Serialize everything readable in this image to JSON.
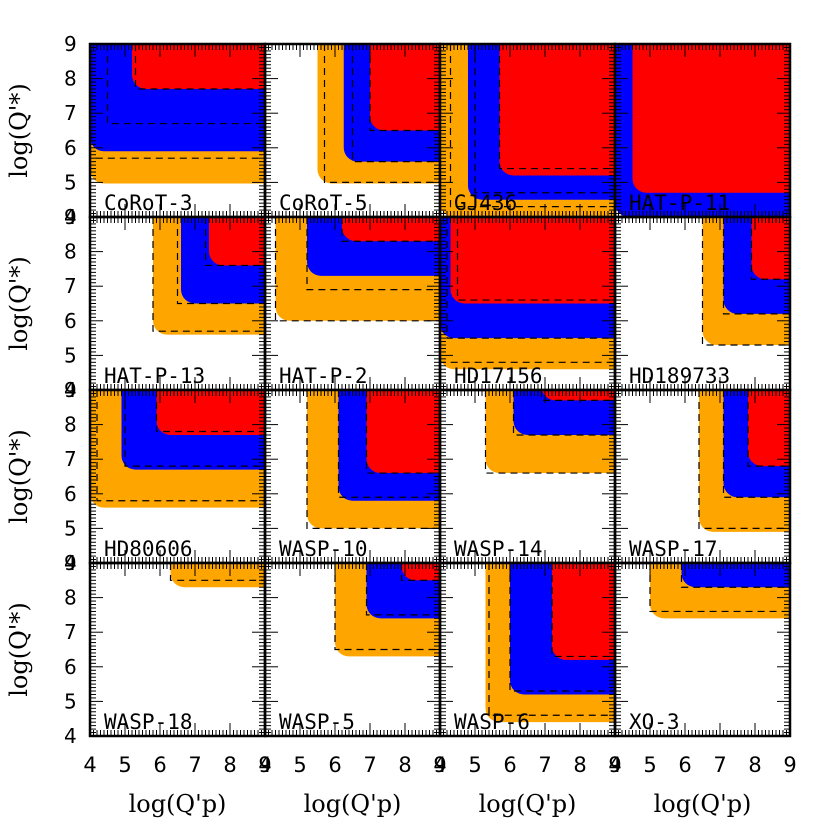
{
  "chart_data": {
    "type": "area",
    "layout": "4x4 grid of panels with shared axes",
    "xlabel": "log(Q'_p)",
    "ylabel": "log(Q'_*)",
    "xlim": [
      4,
      9
    ],
    "ylim": [
      4,
      9
    ],
    "x_ticks": [
      "4",
      "5",
      "6",
      "7",
      "8",
      "9"
    ],
    "y_ticks": [
      "4",
      "5",
      "6",
      "7",
      "8",
      "9"
    ],
    "grid": false,
    "colors": {
      "outer": "#ffa500",
      "middle": "#0000ff",
      "inner": "#ff0000"
    },
    "panels": [
      {
        "name": "CoRoT-3",
        "regions": [
          {
            "xmin": 4.0,
            "ymin": 4.97
          },
          {
            "xmin": 4.0,
            "ymin": 5.9
          },
          {
            "xmin": 5.2,
            "ymin": 7.7
          }
        ],
        "dashed": [
          {
            "x": 4.0,
            "y": 5.7
          },
          {
            "x": 4.5,
            "y": 6.7
          },
          {
            "x": 5.3,
            "y": 7.7
          }
        ]
      },
      {
        "name": "CoRoT-5",
        "regions": [
          {
            "xmin": 5.5,
            "ymin": 4.97
          },
          {
            "xmin": 6.25,
            "ymin": 5.6
          },
          {
            "xmin": 7.0,
            "ymin": 6.5
          }
        ],
        "dashed": [
          {
            "x": 5.7,
            "y": 5.0
          },
          {
            "x": 6.5,
            "y": 5.6
          },
          {
            "x": 7.0,
            "y": 6.5
          }
        ]
      },
      {
        "name": "GJ436",
        "regions": [
          {
            "xmin": 4.0,
            "ymin": 4.0
          },
          {
            "xmin": 4.8,
            "ymin": 4.5
          },
          {
            "xmin": 5.7,
            "ymin": 5.2
          }
        ],
        "dashed": [
          {
            "x": 4.3,
            "y": 4.3
          },
          {
            "x": 5.0,
            "y": 4.7
          },
          {
            "x": 5.7,
            "y": 5.4
          }
        ]
      },
      {
        "name": "HAT-P-11",
        "regions": [
          {
            "xmin": 4.0,
            "ymin": 4.0
          },
          {
            "xmin": 4.0,
            "ymin": 4.0
          },
          {
            "xmin": 4.5,
            "ymin": 4.7
          }
        ],
        "dashed": []
      },
      {
        "name": "HAT-P-13",
        "regions": [
          {
            "xmin": 5.8,
            "ymin": 5.6
          },
          {
            "xmin": 6.6,
            "ymin": 6.5
          },
          {
            "xmin": 7.4,
            "ymin": 7.6
          }
        ],
        "dashed": [
          {
            "x": 5.8,
            "y": 5.7
          },
          {
            "x": 6.5,
            "y": 6.5
          },
          {
            "x": 7.3,
            "y": 7.6
          }
        ]
      },
      {
        "name": "HAT-P-2",
        "regions": [
          {
            "xmin": 4.3,
            "ymin": 6.0
          },
          {
            "xmin": 5.2,
            "ymin": 7.3
          },
          {
            "xmin": 6.2,
            "ymin": 8.3
          }
        ],
        "dashed": [
          {
            "x": 4.3,
            "y": 6.0
          },
          {
            "x": 5.2,
            "y": 6.9
          },
          {
            "x": 6.2,
            "y": 8.3
          }
        ]
      },
      {
        "name": "HD17156",
        "regions": [
          {
            "xmin": 4.0,
            "ymin": 4.6
          },
          {
            "xmin": 4.0,
            "ymin": 5.5
          },
          {
            "xmin": 4.3,
            "ymin": 6.5
          }
        ],
        "dashed": [
          {
            "x": 4.0,
            "y": 4.8
          },
          {
            "x": 4.2,
            "y": 5.5
          },
          {
            "x": 4.5,
            "y": 6.6
          }
        ]
      },
      {
        "name": "HD189733",
        "regions": [
          {
            "xmin": 6.5,
            "ymin": 5.3
          },
          {
            "xmin": 7.1,
            "ymin": 6.2
          },
          {
            "xmin": 7.9,
            "ymin": 7.2
          }
        ],
        "dashed": [
          {
            "x": 6.5,
            "y": 5.3
          },
          {
            "x": 7.1,
            "y": 6.2
          },
          {
            "x": 7.9,
            "y": 7.2
          }
        ]
      },
      {
        "name": "HD80606",
        "regions": [
          {
            "xmin": 4.0,
            "ymin": 5.6
          },
          {
            "xmin": 4.9,
            "ymin": 6.7
          },
          {
            "xmin": 5.9,
            "ymin": 7.7
          }
        ],
        "dashed": [
          {
            "x": 4.2,
            "y": 5.8
          },
          {
            "x": 5.0,
            "y": 6.8
          },
          {
            "x": 5.9,
            "y": 7.8
          }
        ]
      },
      {
        "name": "WASP-10",
        "regions": [
          {
            "xmin": 5.2,
            "ymin": 5.0
          },
          {
            "xmin": 6.1,
            "ymin": 5.8
          },
          {
            "xmin": 6.9,
            "ymin": 6.6
          }
        ],
        "dashed": [
          {
            "x": 5.2,
            "y": 5.0
          },
          {
            "x": 6.1,
            "y": 5.9
          },
          {
            "x": 6.9,
            "y": 6.6
          }
        ]
      },
      {
        "name": "WASP-14",
        "regions": [
          {
            "xmin": 5.3,
            "ymin": 6.6
          },
          {
            "xmin": 6.1,
            "ymin": 7.7
          },
          {
            "xmin": 6.9,
            "ymin": 8.7
          }
        ],
        "dashed": [
          {
            "x": 5.3,
            "y": 6.6
          },
          {
            "x": 6.1,
            "y": 7.7
          },
          {
            "x": 6.9,
            "y": 8.7
          }
        ]
      },
      {
        "name": "WASP-17",
        "regions": [
          {
            "xmin": 6.4,
            "ymin": 4.9
          },
          {
            "xmin": 7.1,
            "ymin": 5.9
          },
          {
            "xmin": 7.8,
            "ymin": 6.8
          }
        ],
        "dashed": [
          {
            "x": 6.4,
            "y": 5.0
          },
          {
            "x": 7.1,
            "y": 5.9
          },
          {
            "x": 7.8,
            "y": 6.8
          }
        ]
      },
      {
        "name": "WASP-18",
        "regions": [
          {
            "xmin": 6.3,
            "ymin": 8.3
          }
        ],
        "dashed": [
          {
            "x": 6.3,
            "y": 8.5
          }
        ]
      },
      {
        "name": "WASP-5",
        "regions": [
          {
            "xmin": 6.0,
            "ymin": 6.3
          },
          {
            "xmin": 6.9,
            "ymin": 7.4
          },
          {
            "xmin": 7.9,
            "ymin": 8.5
          }
        ],
        "dashed": [
          {
            "x": 6.0,
            "y": 6.5
          },
          {
            "x": 6.9,
            "y": 7.5
          },
          {
            "x": 7.9,
            "y": 8.5
          }
        ]
      },
      {
        "name": "WASP-6",
        "regions": [
          {
            "xmin": 5.3,
            "ymin": 4.4
          },
          {
            "xmin": 6.0,
            "ymin": 5.2
          },
          {
            "xmin": 7.2,
            "ymin": 6.2
          }
        ],
        "dashed": [
          {
            "x": 5.4,
            "y": 4.6
          },
          {
            "x": 6.0,
            "y": 5.3
          },
          {
            "x": 7.2,
            "y": 6.3
          }
        ]
      },
      {
        "name": "XO-3",
        "regions": [
          {
            "xmin": 5.0,
            "ymin": 7.4
          },
          {
            "xmin": 5.9,
            "ymin": 8.3
          }
        ],
        "dashed": [
          {
            "x": 5.0,
            "y": 7.6
          },
          {
            "x": 5.9,
            "y": 8.3
          }
        ]
      }
    ]
  }
}
